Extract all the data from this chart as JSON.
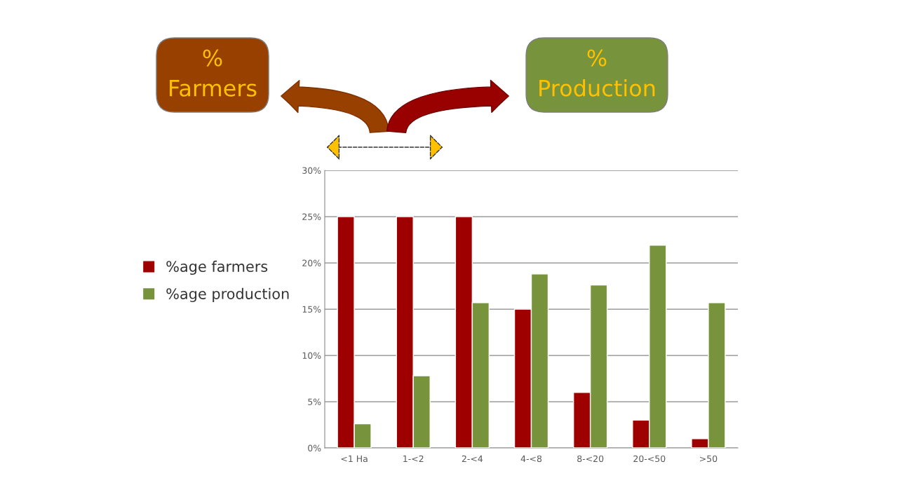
{
  "chart_data": {
    "type": "bar",
    "categories": [
      "<1 Ha",
      "1-<2",
      "2-<4",
      "4-<8",
      "8-<20",
      "20-<50",
      ">50"
    ],
    "series": [
      {
        "name": "%age farmers",
        "color": "#9e0000",
        "values": [
          25,
          25,
          25,
          15,
          6,
          3,
          1
        ]
      },
      {
        "name": "%age production",
        "color": "#77933c",
        "values": [
          2.6,
          7.8,
          15.7,
          18.8,
          17.6,
          21.9,
          15.7
        ]
      }
    ],
    "ylim": [
      0,
      30
    ],
    "yticks": [
      {
        "value": 0,
        "label": "0%"
      },
      {
        "value": 5,
        "label": "5%"
      },
      {
        "value": 10,
        "label": "10%"
      },
      {
        "value": 15,
        "label": "15%"
      },
      {
        "value": 20,
        "label": "20%"
      },
      {
        "value": 25,
        "label": "25%"
      },
      {
        "value": 30,
        "label": "30%"
      }
    ],
    "grid": "y",
    "legend": "left",
    "annotations": [
      "%\nFarmers",
      "%\nProduction"
    ]
  }
}
